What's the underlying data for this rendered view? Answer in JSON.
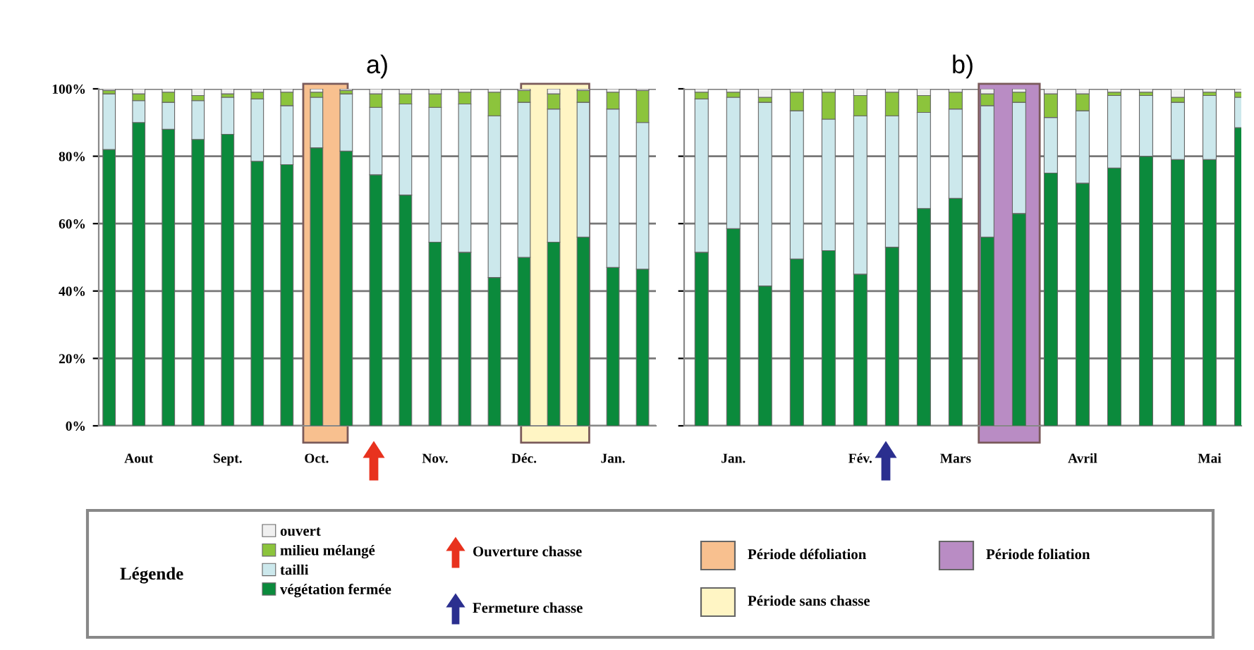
{
  "chart_data": [
    {
      "type": "bar",
      "title": "a)",
      "stacked": true,
      "legend": "bottom",
      "legend_title": "Légende",
      "grid": "y",
      "categories": [
        null,
        "Aout",
        null,
        null,
        "Sept.",
        null,
        null,
        "Oct.",
        null,
        null,
        null,
        "Nov.",
        null,
        null,
        "Déc.",
        null,
        null,
        "Jan.",
        null
      ],
      "ylim": [
        0,
        100
      ],
      "yticks": [
        {
          "value": 0,
          "label": "0%"
        },
        {
          "value": 20,
          "label": "20%"
        },
        {
          "value": 40,
          "label": "40%"
        },
        {
          "value": 60,
          "label": "60%"
        },
        {
          "value": 80,
          "label": "80%"
        },
        {
          "value": 100,
          "label": "100%"
        }
      ],
      "series": [
        {
          "name": "végétation fermée",
          "color": "#0b8a3c",
          "values": [
            82,
            90,
            88,
            85,
            86.5,
            78.5,
            77.5,
            82.5,
            81.5,
            74.5,
            68.5,
            54.5,
            51.5,
            44,
            50,
            54.5,
            56,
            47,
            46.5
          ]
        },
        {
          "name": "tailli",
          "color": "#cce8ec",
          "values": [
            16.5,
            6.5,
            8,
            11.5,
            11,
            18.5,
            17.5,
            15,
            17,
            20,
            27,
            40,
            44,
            48,
            46,
            39.5,
            40,
            47,
            43.5
          ]
        },
        {
          "name": "milieu mélangé",
          "color": "#8cc43c",
          "values": [
            1,
            2,
            3,
            1.5,
            1,
            2,
            4,
            1.5,
            1,
            4,
            3,
            4,
            3.5,
            7,
            3.5,
            4.5,
            3.5,
            5,
            9.5
          ]
        },
        {
          "name": "ouvert",
          "color": "#f0f0f0",
          "values": [
            0.5,
            1.5,
            1,
            2,
            1.5,
            1,
            1,
            1,
            0.5,
            1.5,
            1.5,
            1.5,
            1,
            1,
            0.5,
            1.5,
            0.5,
            1,
            0.5
          ]
        }
      ],
      "annotations": [
        "Ouverture chasse",
        "Fermeture chasse",
        "Période défoliation",
        "Période sans chasse",
        "Période foliation"
      ]
    },
    {
      "type": "bar",
      "title": "b)",
      "stacked": true,
      "grid": "y",
      "tick_labels": "x",
      "categories": [
        null,
        "Jan.",
        null,
        null,
        null,
        "Fév.",
        null,
        null,
        "Mars",
        null,
        null,
        null,
        "Avril",
        null,
        null,
        null,
        "Mai",
        null
      ],
      "ylim": [
        0,
        100
      ],
      "series": [
        {
          "color": "#0b8a3c",
          "values": [
            51.5,
            58.5,
            41.5,
            49.5,
            52,
            45,
            53,
            64.5,
            67.5,
            56,
            63,
            75,
            72,
            76.5,
            80,
            79,
            79,
            88.5
          ]
        },
        {
          "color": "#cce8ec",
          "values": [
            45.5,
            39,
            54.5,
            44,
            39,
            47,
            39,
            28.5,
            26.5,
            39,
            33,
            16.5,
            21.5,
            21.5,
            18,
            17,
            19,
            9
          ]
        },
        {
          "color": "#8cc43c",
          "values": [
            2,
            1.5,
            1.5,
            5.5,
            8,
            6,
            7,
            5,
            5,
            3.5,
            3,
            7,
            5,
            1,
            1,
            1.5,
            1,
            1.5
          ]
        },
        {
          "color": "#f0f0f0",
          "values": [
            1,
            1,
            2.5,
            1,
            1,
            2,
            1,
            2,
            1,
            1.5,
            1,
            1.5,
            1.5,
            1,
            1,
            2.5,
            1,
            1
          ]
        }
      ]
    }
  ]
}
